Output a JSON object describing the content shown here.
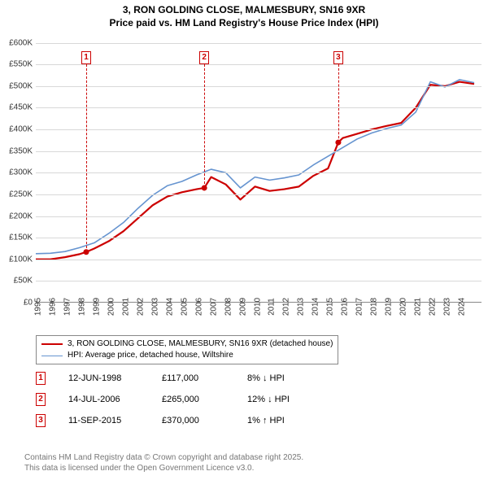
{
  "title_line1": "3, RON GOLDING CLOSE, MALMESBURY, SN16 9XR",
  "title_line2": "Price paid vs. HM Land Registry's House Price Index (HPI)",
  "chart": {
    "type": "line",
    "background_color": "#ffffff",
    "grid_color": "#d8d8d8",
    "x_min": 1995,
    "x_max": 2025.5,
    "x_ticks": [
      1995,
      1996,
      1997,
      1998,
      1999,
      2000,
      2001,
      2002,
      2003,
      2004,
      2005,
      2006,
      2007,
      2008,
      2009,
      2010,
      2011,
      2012,
      2013,
      2014,
      2015,
      2016,
      2017,
      2018,
      2019,
      2020,
      2021,
      2022,
      2023,
      2024
    ],
    "y_min": 0,
    "y_max": 620000,
    "y_ticks": [
      0,
      50000,
      100000,
      150000,
      200000,
      250000,
      300000,
      350000,
      400000,
      450000,
      500000,
      550000,
      600000
    ],
    "y_tick_labels": [
      "£0",
      "£50K",
      "£100K",
      "£150K",
      "£200K",
      "£250K",
      "£300K",
      "£350K",
      "£400K",
      "£450K",
      "£500K",
      "£550K",
      "£600K"
    ],
    "axis_fontsize": 10,
    "axis_color": "#333333",
    "series": [
      {
        "id": "price_paid",
        "label": "3, RON GOLDING CLOSE, MALMESBURY, SN16 9XR (detached house)",
        "color": "#cc0000",
        "line_width": 2.2,
        "x": [
          1995,
          1996,
          1997,
          1998,
          1998.45,
          1999,
          2000,
          2001,
          2002,
          2003,
          2004,
          2005,
          2006,
          2006.53,
          2007,
          2008,
          2009,
          2010,
          2011,
          2012,
          2013,
          2014,
          2015,
          2015.7,
          2016,
          2017,
          2018,
          2019,
          2020,
          2021,
          2022,
          2023,
          2024,
          2025
        ],
        "y": [
          100000,
          100000,
          105000,
          112000,
          117000,
          125000,
          142000,
          165000,
          195000,
          225000,
          245000,
          255000,
          262000,
          265000,
          290000,
          273000,
          238000,
          268000,
          258000,
          262000,
          268000,
          293000,
          310000,
          370000,
          380000,
          390000,
          400000,
          408000,
          415000,
          450000,
          503000,
          500000,
          510000,
          505000
        ]
      },
      {
        "id": "hpi",
        "label": "HPI: Average price, detached house, Wiltshire",
        "color": "#6694d0",
        "line_width": 1.6,
        "x": [
          1995,
          1996,
          1997,
          1998,
          1999,
          2000,
          2001,
          2002,
          2003,
          2004,
          2005,
          2006,
          2007,
          2008,
          2009,
          2010,
          2011,
          2012,
          2013,
          2014,
          2015,
          2016,
          2017,
          2018,
          2019,
          2020,
          2021,
          2022,
          2023,
          2024,
          2025
        ],
        "y": [
          113000,
          114000,
          118000,
          127000,
          138000,
          160000,
          185000,
          218000,
          248000,
          270000,
          280000,
          295000,
          308000,
          300000,
          265000,
          290000,
          283000,
          288000,
          295000,
          318000,
          338000,
          358000,
          378000,
          392000,
          402000,
          410000,
          440000,
          510000,
          498000,
          515000,
          508000
        ]
      }
    ],
    "sale_points": [
      {
        "x": 1998.45,
        "y": 117000,
        "color": "#cc0000"
      },
      {
        "x": 2006.53,
        "y": 265000,
        "color": "#cc0000"
      },
      {
        "x": 2015.7,
        "y": 370000,
        "color": "#cc0000"
      }
    ],
    "marker_boxes": [
      {
        "n": "1",
        "x": 1998.45
      },
      {
        "n": "2",
        "x": 2006.53
      },
      {
        "n": "3",
        "x": 2015.7
      }
    ],
    "marker_box_top_y": 580000,
    "marker_box_color": "#cc0000"
  },
  "legend": {
    "border_color": "#888888",
    "rows": [
      {
        "color": "#cc0000",
        "width": 2.2,
        "label": "3, RON GOLDING CLOSE, MALMESBURY, SN16 9XR (detached house)"
      },
      {
        "color": "#6694d0",
        "width": 1.6,
        "label": "HPI: Average price, detached house, Wiltshire"
      }
    ]
  },
  "events": [
    {
      "n": "1",
      "date": "12-JUN-1998",
      "price": "£117,000",
      "hpi": "8% ↓ HPI"
    },
    {
      "n": "2",
      "date": "14-JUL-2006",
      "price": "£265,000",
      "hpi": "12% ↓ HPI"
    },
    {
      "n": "3",
      "date": "11-SEP-2015",
      "price": "£370,000",
      "hpi": "1% ↑ HPI"
    }
  ],
  "footer_line1": "Contains HM Land Registry data © Crown copyright and database right 2025.",
  "footer_line2": "This data is licensed under the Open Government Licence v3.0."
}
